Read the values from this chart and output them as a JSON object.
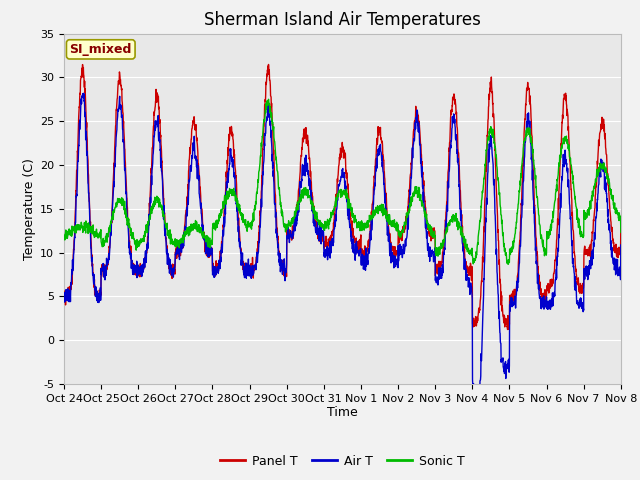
{
  "title": "Sherman Island Air Temperatures",
  "xlabel": "Time",
  "ylabel": "Temperature (C)",
  "ylim": [
    -5,
    35
  ],
  "yticks": [
    -5,
    0,
    5,
    10,
    15,
    20,
    25,
    30,
    35
  ],
  "xtick_labels": [
    "Oct 24",
    "Oct 25",
    "Oct 26",
    "Oct 27",
    "Oct 28",
    "Oct 29",
    "Oct 30",
    "Oct 31",
    "Nov 1",
    "Nov 2",
    "Nov 3",
    "Nov 4",
    "Nov 5",
    "Nov 6",
    "Nov 7",
    "Nov 8"
  ],
  "legend_labels": [
    "Panel T",
    "Air T",
    "Sonic T"
  ],
  "line_colors": [
    "#cc0000",
    "#0000cc",
    "#00bb00"
  ],
  "annotation_text": "SI_mixed",
  "annotation_bg": "#ffffcc",
  "annotation_border": "#999900",
  "bg_color": "#e8e8e8",
  "grid_color": "#ffffff",
  "title_fontsize": 12,
  "tick_fontsize": 8,
  "ylabel_fontsize": 9,
  "xlabel_fontsize": 9
}
